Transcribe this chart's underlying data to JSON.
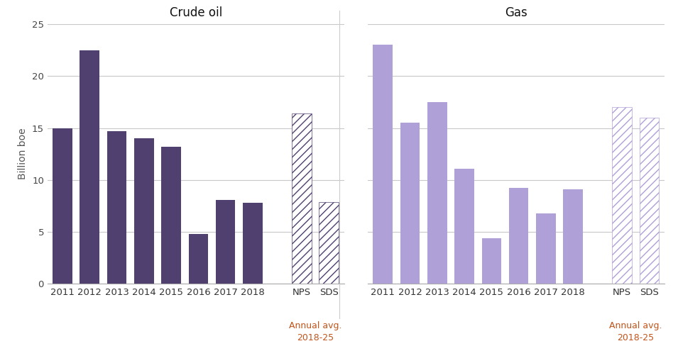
{
  "crude_oil": {
    "title": "Crude oil",
    "categories": [
      "2011",
      "2012",
      "2013",
      "2014",
      "2015",
      "2016",
      "2017",
      "2018",
      "NPS",
      "SDS"
    ],
    "values": [
      15.0,
      22.5,
      14.7,
      14.0,
      13.2,
      4.8,
      8.1,
      7.8,
      16.4,
      7.9
    ],
    "hatched": [
      false,
      false,
      false,
      false,
      false,
      false,
      false,
      false,
      true,
      true
    ],
    "bar_color": "#504070",
    "hatch_pattern": "///",
    "ylabel": "Billion boe",
    "ylim": [
      0,
      25
    ],
    "yticks": [
      0,
      5,
      10,
      15,
      20,
      25
    ]
  },
  "gas": {
    "title": "Gas",
    "categories": [
      "2011",
      "2012",
      "2013",
      "2014",
      "2015",
      "2016",
      "2017",
      "2018",
      "NPS",
      "SDS"
    ],
    "values": [
      23.0,
      15.5,
      17.5,
      11.1,
      4.4,
      9.2,
      6.8,
      9.1,
      17.0,
      16.0
    ],
    "hatched": [
      false,
      false,
      false,
      false,
      false,
      false,
      false,
      false,
      true,
      true
    ],
    "bar_color": "#b0a0d8",
    "hatch_pattern": "///",
    "ylim": [
      0,
      25
    ],
    "yticks": [
      0,
      5,
      10,
      15,
      20,
      25
    ]
  },
  "annotation_label_line1": "Annual avg.",
  "annotation_label_line2": "2018-25",
  "annotation_color": "#c0541a",
  "background_color": "#ffffff",
  "grid_color": "#c8c8c8",
  "title_fontsize": 12,
  "tick_fontsize": 9.5,
  "ylabel_fontsize": 10,
  "bar_gap_positions": [
    8
  ]
}
